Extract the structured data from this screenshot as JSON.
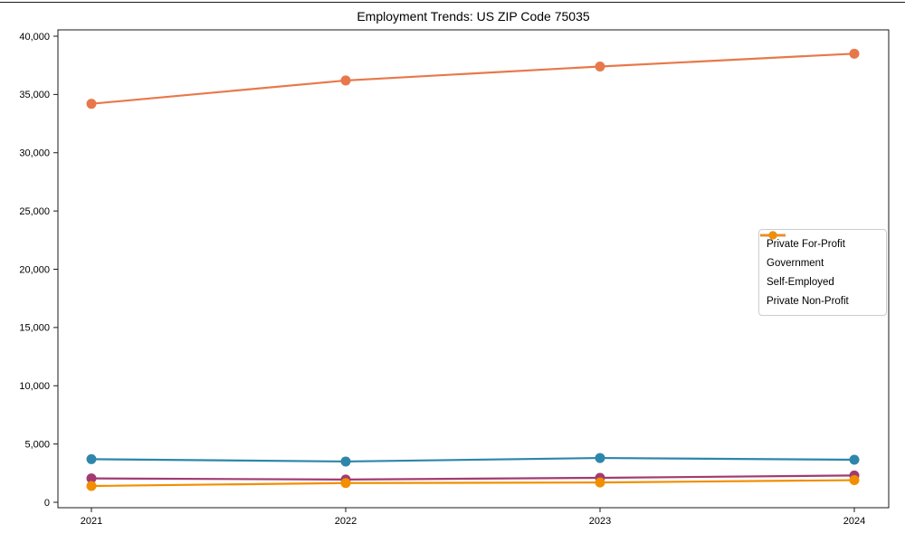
{
  "page": {
    "background": "#ffffff"
  },
  "chart_data": {
    "type": "line",
    "title": "Employment Trends: US ZIP Code 75035",
    "x": [
      2021,
      2022,
      2023,
      2024
    ],
    "x_tick_labels": [
      "2021",
      "2022",
      "2023",
      "2024"
    ],
    "xlabel": "",
    "ylabel": "",
    "ylim": [
      0,
      40000
    ],
    "ytick_values": [
      0,
      5000,
      10000,
      15000,
      20000,
      25000,
      30000,
      35000,
      40000
    ],
    "ytick_labels": [
      "0",
      "5,000",
      "10,000",
      "15,000",
      "20,000",
      "25,000",
      "30,000",
      "35,000",
      "40,000"
    ],
    "grid": false,
    "legend_position": "center-right",
    "marker": "circle",
    "series": [
      {
        "name": "Private For-Profit",
        "color": "#e8784a",
        "values": [
          34200,
          36200,
          37400,
          38500
        ]
      },
      {
        "name": "Government",
        "color": "#2e86ab",
        "values": [
          3700,
          3500,
          3800,
          3650
        ]
      },
      {
        "name": "Self-Employed",
        "color": "#a23b72",
        "values": [
          2050,
          1950,
          2100,
          2300
        ]
      },
      {
        "name": "Private Non-Profit",
        "color": "#f18f01",
        "values": [
          1400,
          1650,
          1700,
          1900
        ]
      }
    ]
  }
}
